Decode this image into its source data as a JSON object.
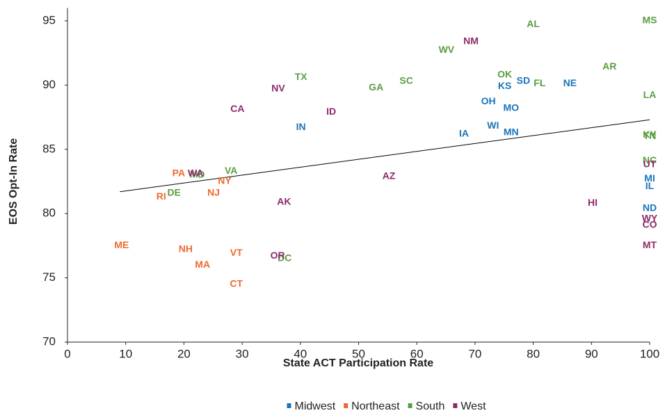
{
  "chart_data": {
    "type": "scatter",
    "x_label": "State ACT Participation Rate",
    "y_label": "EOS Opt-In Rate",
    "xlim": [
      0,
      100
    ],
    "ylim": [
      70,
      96
    ],
    "xticks": [
      0,
      10,
      20,
      30,
      40,
      50,
      60,
      70,
      80,
      90,
      100
    ],
    "yticks": [
      70,
      75,
      80,
      85,
      90,
      95
    ],
    "legend": "bottom",
    "trendline": {
      "x": [
        9,
        100
      ],
      "values": [
        81.7,
        87.3
      ],
      "color": "#000000"
    },
    "series": [
      {
        "name": "Midwest",
        "color": "#1b75bb",
        "labels": [
          "IN",
          "OH",
          "KS",
          "SD",
          "MO",
          "NE",
          "IA",
          "WI",
          "MN",
          "MI",
          "IL",
          "ND"
        ],
        "x": [
          40.1,
          72.3,
          75.1,
          78.3,
          76.2,
          86.3,
          68.1,
          73.1,
          76.2,
          100,
          100,
          100
        ],
        "values": [
          86.7,
          88.7,
          89.9,
          90.3,
          88.2,
          90.1,
          86.2,
          86.8,
          86.3,
          82.7,
          82.1,
          80.4
        ]
      },
      {
        "name": "Northeast",
        "color": "#ef6b2d",
        "labels": [
          "PA",
          "RI",
          "NY",
          "NJ",
          "ME",
          "NH",
          "MA",
          "VT",
          "CT"
        ],
        "x": [
          19.1,
          16.1,
          27.0,
          25.1,
          9.3,
          20.3,
          23.2,
          29.0,
          29.0
        ],
        "values": [
          83.1,
          81.3,
          82.5,
          81.6,
          77.5,
          77.2,
          76.0,
          76.9,
          74.5
        ]
      },
      {
        "name": "South",
        "color": "#5a9d41",
        "labels": [
          "AL",
          "MS",
          "WV",
          "TX",
          "SC",
          "GA",
          "OK",
          "FL",
          "AR",
          "LA",
          "VA",
          "MD",
          "DE",
          "DC",
          "KY",
          "TN",
          "NC"
        ],
        "x": [
          80.0,
          100,
          65.1,
          40.1,
          58.2,
          53.0,
          75.1,
          81.1,
          93.1,
          100,
          28.1,
          22.3,
          18.3,
          37.3,
          100,
          100,
          100
        ],
        "values": [
          94.7,
          95.0,
          92.7,
          90.6,
          90.3,
          89.8,
          90.8,
          90.1,
          91.4,
          89.2,
          83.3,
          83.0,
          81.6,
          76.5,
          86.1,
          86.0,
          84.1
        ]
      },
      {
        "name": "West",
        "color": "#8d2b6b",
        "labels": [
          "NM",
          "NV",
          "CA",
          "ID",
          "WA",
          "AZ",
          "AK",
          "OR",
          "HI",
          "UT",
          "WY",
          "CO",
          "MT"
        ],
        "x": [
          69.3,
          36.2,
          29.2,
          45.3,
          22.0,
          55.2,
          37.2,
          36.1,
          90.2,
          100,
          100,
          100,
          100
        ],
        "values": [
          93.4,
          89.7,
          88.1,
          87.9,
          83.1,
          82.9,
          80.9,
          76.7,
          80.8,
          83.8,
          79.6,
          79.1,
          77.5
        ]
      }
    ]
  }
}
